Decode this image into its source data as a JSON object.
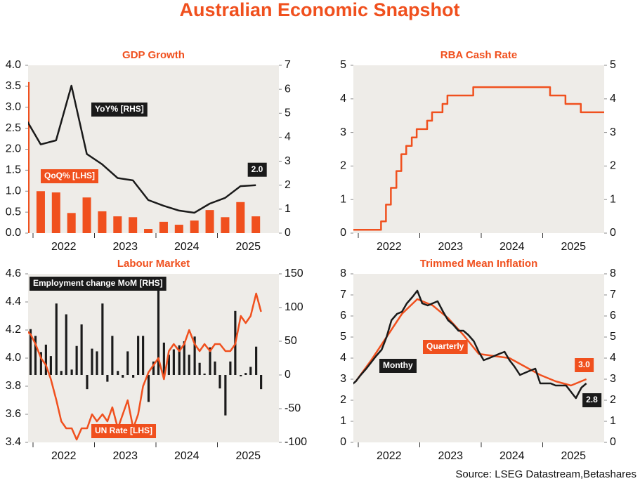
{
  "title": "Australian Economic Snapshot",
  "source": "Source: LSEG Datastream,Betashares",
  "chart_data": [
    {
      "type": "combo",
      "title": "GDP Growth",
      "x": [
        2021.875,
        2022.125,
        2022.375,
        2022.625,
        2022.875,
        2023.125,
        2023.375,
        2023.625,
        2023.875,
        2024.125,
        2024.375,
        2024.625,
        2024.875,
        2025.125,
        2025.375,
        2025.625
      ],
      "xlim": [
        2021.92,
        2026.0
      ],
      "xticks": [
        {
          "value": 2022.5,
          "label": "2022"
        },
        {
          "value": 2023.5,
          "label": "2023"
        },
        {
          "value": 2024.5,
          "label": "2024"
        },
        {
          "value": 2025.5,
          "label": "2025"
        }
      ],
      "ylim": [
        0,
        4
      ],
      "yticks": [
        {
          "value": 0,
          "label": "0.0"
        },
        0.5,
        {
          "value": 1,
          "label": "1.0"
        },
        1.5,
        {
          "value": 2,
          "label": "2.0"
        },
        2.5,
        {
          "value": 3,
          "label": "3.0"
        },
        3.5,
        {
          "value": 4,
          "label": "4.0"
        }
      ],
      "y2lim": [
        0,
        7
      ],
      "y2ticks": [
        0,
        1,
        2,
        3,
        4,
        5,
        6,
        7
      ],
      "series": [
        {
          "name": "QoQ% [LHS]",
          "type": "bar",
          "color": "#f0501e",
          "values": [
            3.6,
            1.0,
            0.97,
            0.48,
            0.85,
            0.52,
            0.4,
            0.38,
            0.1,
            0.27,
            0.2,
            0.3,
            0.55,
            0.38,
            0.74,
            0.4
          ]
        },
        {
          "name": "YoY% [RHS]",
          "type": "line",
          "axis": "y2",
          "color": "#1a1a1a",
          "values": [
            4.8,
            3.7,
            3.87,
            6.15,
            3.3,
            2.87,
            2.3,
            2.2,
            1.38,
            1.14,
            0.94,
            0.85,
            1.23,
            1.47,
            1.96,
            2.0
          ],
          "value_labels": [
            null,
            null,
            null,
            null,
            null,
            null,
            null,
            null,
            null,
            null,
            null,
            null,
            null,
            null,
            null,
            "2.0"
          ]
        }
      ]
    },
    {
      "type": "line",
      "step": true,
      "title": "RBA Cash Rate",
      "xlim": [
        2021.92,
        2026.0
      ],
      "xticks": [
        {
          "value": 2022.5,
          "label": "2022"
        },
        {
          "value": 2023.5,
          "label": "2023"
        },
        {
          "value": 2024.5,
          "label": "2024"
        },
        {
          "value": 2025.5,
          "label": "2025"
        }
      ],
      "ylim": [
        0,
        5
      ],
      "yticks": [
        0,
        1,
        2,
        3,
        4,
        5
      ],
      "y2lim": [
        0,
        5
      ],
      "y2ticks": [
        0,
        1,
        2,
        3,
        4,
        5
      ],
      "series": [
        {
          "name": "RBA Cash Rate",
          "color": "#f0501e",
          "x": [
            2021.92,
            2022.37,
            2022.45,
            2022.53,
            2022.62,
            2022.7,
            2022.78,
            2022.87,
            2022.95,
            2023.12,
            2023.2,
            2023.37,
            2023.45,
            2023.87,
            2025.12,
            2025.37,
            2025.62
          ],
          "values": [
            0.1,
            0.35,
            0.85,
            1.35,
            1.85,
            2.35,
            2.6,
            2.85,
            3.1,
            3.35,
            3.6,
            3.85,
            4.1,
            4.35,
            4.1,
            3.85,
            3.6
          ]
        }
      ]
    },
    {
      "type": "combo",
      "title": "Labour Market",
      "x": [
        2021.88,
        2021.96,
        2022.04,
        2022.13,
        2022.21,
        2022.29,
        2022.38,
        2022.46,
        2022.54,
        2022.63,
        2022.71,
        2022.79,
        2022.88,
        2022.96,
        2023.04,
        2023.13,
        2023.21,
        2023.29,
        2023.38,
        2023.46,
        2023.54,
        2023.63,
        2023.71,
        2023.79,
        2023.88,
        2023.96,
        2024.04,
        2024.13,
        2024.21,
        2024.29,
        2024.38,
        2024.46,
        2024.54,
        2024.63,
        2024.71,
        2024.79,
        2024.88,
        2024.96,
        2025.04,
        2025.13,
        2025.21,
        2025.29,
        2025.38,
        2025.46,
        2025.54,
        2025.63,
        2025.71
      ],
      "xlim": [
        2021.92,
        2026.0
      ],
      "xticks": [
        {
          "value": 2022.5,
          "label": "2022"
        },
        {
          "value": 2023.5,
          "label": "2023"
        },
        {
          "value": 2024.5,
          "label": "2024"
        },
        {
          "value": 2025.5,
          "label": "2025"
        }
      ],
      "ylim": [
        3.4,
        4.6
      ],
      "yticks": [
        3.4,
        3.6,
        3.8,
        {
          "value": 4,
          "label": "4.0"
        },
        4.2,
        4.4,
        4.6
      ],
      "y2lim": [
        -100,
        150
      ],
      "y2ticks": [
        -100,
        -50,
        0,
        50,
        100,
        150
      ],
      "series": [
        {
          "name": "Employment change MoM [RHS]",
          "type": "bar",
          "axis": "y2",
          "color": "#1a1a1a",
          "values": [
            78,
            68,
            58,
            34,
            45,
            28,
            106,
            6,
            90,
            8,
            43,
            75,
            -21,
            39,
            35,
            106,
            -10,
            58,
            6,
            -4,
            35,
            -4,
            58,
            58,
            -40,
            20,
            127,
            48,
            30,
            38,
            44,
            50,
            30,
            57,
            18,
            2,
            41,
            20,
            -20,
            -60,
            20,
            95,
            -2,
            3,
            12,
            42,
            -21
          ]
        },
        {
          "name": "UN Rate [LHS]",
          "type": "line",
          "color": "#f0501e",
          "values": [
            4.2,
            4.17,
            4.1,
            4.0,
            3.95,
            3.85,
            3.7,
            3.55,
            3.5,
            3.5,
            3.42,
            3.5,
            3.5,
            3.6,
            3.55,
            3.6,
            3.55,
            3.65,
            3.5,
            3.6,
            3.7,
            3.5,
            3.6,
            3.8,
            3.9,
            3.95,
            4.0,
            3.85,
            4.05,
            4.1,
            4.05,
            4.1,
            4.2,
            4.1,
            4.05,
            4.1,
            4.05,
            4.1,
            4.1,
            4.05,
            4.05,
            4.1,
            4.3,
            4.25,
            4.3,
            4.46,
            4.33
          ]
        }
      ]
    },
    {
      "type": "line",
      "title": "Trimmed Mean Inflation",
      "xlim": [
        2021.92,
        2026.0
      ],
      "xticks": [
        {
          "value": 2022.5,
          "label": "2022"
        },
        {
          "value": 2023.5,
          "label": "2023"
        },
        {
          "value": 2024.5,
          "label": "2024"
        },
        {
          "value": 2025.5,
          "label": "2025"
        }
      ],
      "ylim": [
        0,
        8
      ],
      "yticks": [
        0,
        1,
        2,
        3,
        4,
        5,
        6,
        7,
        8
      ],
      "y2lim": [
        0,
        8
      ],
      "y2ticks": [
        0,
        1,
        2,
        3,
        4,
        5,
        6,
        7,
        8
      ],
      "series": [
        {
          "name": "Quarterly",
          "color": "#f0501e",
          "x": [
            2021.96,
            2022.21,
            2022.46,
            2022.71,
            2022.96,
            2023.21,
            2023.46,
            2023.71,
            2023.96,
            2024.21,
            2024.46,
            2024.71,
            2024.96,
            2025.21,
            2025.46,
            2025.71
          ],
          "values": [
            2.9,
            3.9,
            5.0,
            6.1,
            6.8,
            6.5,
            5.9,
            5.1,
            4.2,
            4.1,
            4.0,
            3.6,
            3.2,
            2.9,
            2.7,
            3.0
          ],
          "value_labels": [
            null,
            null,
            null,
            null,
            null,
            null,
            null,
            null,
            null,
            null,
            null,
            null,
            null,
            null,
            null,
            "3.0"
          ]
        },
        {
          "name": "Monthy",
          "color": "#1a1a1a",
          "x": [
            2021.88,
            2021.96,
            2022.04,
            2022.13,
            2022.21,
            2022.29,
            2022.38,
            2022.46,
            2022.54,
            2022.63,
            2022.71,
            2022.79,
            2022.88,
            2022.96,
            2023.04,
            2023.13,
            2023.21,
            2023.29,
            2023.38,
            2023.46,
            2023.54,
            2023.63,
            2023.71,
            2023.79,
            2023.88,
            2023.96,
            2024.04,
            2024.13,
            2024.21,
            2024.29,
            2024.38,
            2024.46,
            2024.54,
            2024.63,
            2024.71,
            2024.79,
            2024.88,
            2024.96,
            2025.04,
            2025.13,
            2025.21,
            2025.29,
            2025.38,
            2025.46,
            2025.54,
            2025.63,
            2025.71
          ],
          "values": [
            2.7,
            2.9,
            3.2,
            3.5,
            3.8,
            4.1,
            4.4,
            5.0,
            5.8,
            6.1,
            6.2,
            6.6,
            6.9,
            7.2,
            6.6,
            6.5,
            6.6,
            6.7,
            6.2,
            5.8,
            5.6,
            5.3,
            5.3,
            5.1,
            4.8,
            4.3,
            3.9,
            4.0,
            4.1,
            4.2,
            4.3,
            3.9,
            3.6,
            3.2,
            3.3,
            3.4,
            3.5,
            2.8,
            2.8,
            2.8,
            2.7,
            2.7,
            2.7,
            2.4,
            2.1,
            2.6,
            2.8
          ],
          "value_labels": [
            null,
            null,
            null,
            null,
            null,
            null,
            null,
            null,
            null,
            null,
            null,
            null,
            null,
            null,
            null,
            null,
            null,
            null,
            null,
            null,
            null,
            null,
            null,
            null,
            null,
            null,
            null,
            null,
            null,
            null,
            null,
            null,
            null,
            null,
            null,
            null,
            null,
            null,
            null,
            null,
            null,
            null,
            null,
            null,
            null,
            null,
            "2.8"
          ]
        }
      ]
    }
  ]
}
